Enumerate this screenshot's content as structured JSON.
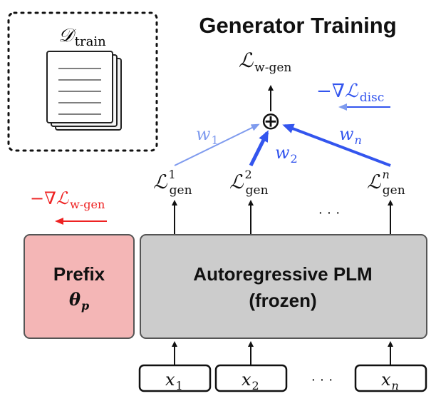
{
  "title": "Generator Training",
  "dataset": {
    "symbol": "𝒟",
    "subscript": "train"
  },
  "output_loss": {
    "symbol": "ℒ",
    "subscript": "w-gen"
  },
  "disc_grad": {
    "prefix": "−∇",
    "symbol": "ℒ",
    "subscript": "disc"
  },
  "wgen_grad": {
    "prefix": "−∇",
    "symbol": "ℒ",
    "subscript": "w-gen"
  },
  "weights": [
    {
      "symbol": "w",
      "subscript": "1"
    },
    {
      "symbol": "w",
      "subscript": "2"
    },
    {
      "symbol": "w",
      "subscript": "n"
    }
  ],
  "gen_losses": [
    {
      "symbol": "ℒ",
      "subscript": "gen",
      "superscript": "1"
    },
    {
      "symbol": "ℒ",
      "subscript": "gen",
      "superscript": "2"
    },
    {
      "symbol": "ℒ",
      "subscript": "gen",
      "superscript": "n"
    }
  ],
  "ellipsis": "· · ·",
  "sum_symbol": "⊕",
  "prefix_box": {
    "label": "Prefix",
    "symbol": "θ",
    "subscript": "p"
  },
  "plm_box": {
    "line1": "Autoregressive PLM",
    "line2": "(frozen)"
  },
  "inputs": [
    {
      "symbol": "x",
      "subscript": "1"
    },
    {
      "symbol": "x",
      "subscript": "2"
    },
    {
      "symbol": "x",
      "subscript": "n"
    }
  ],
  "colors": {
    "blue": "#3355ee",
    "light_blue": "#7f9bee",
    "red": "#ee2222",
    "prefix_fill": "#f4b6b6",
    "plm_fill": "#cccccc"
  }
}
